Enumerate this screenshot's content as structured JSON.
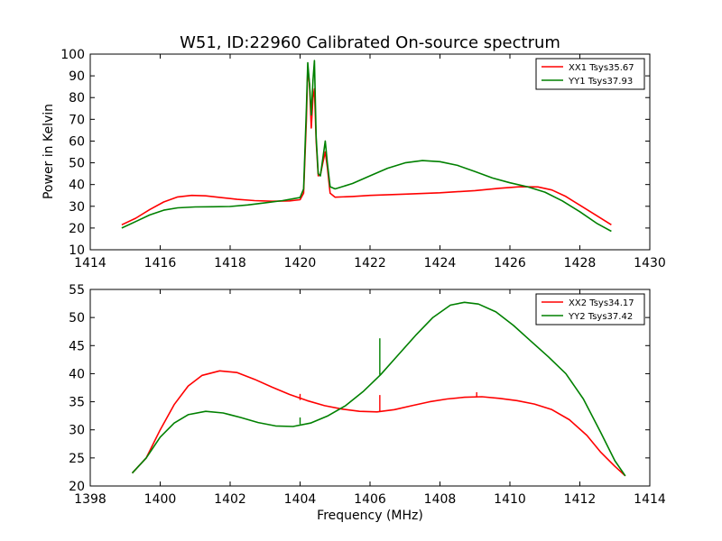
{
  "chart_data": [
    {
      "type": "line",
      "title": "W51, ID:22960 Calibrated On-source spectrum",
      "xlabel": "",
      "ylabel": "Power in Kelvin",
      "xlim": [
        1414,
        1430
      ],
      "ylim": [
        10,
        100
      ],
      "xticks": [
        1414,
        1416,
        1418,
        1420,
        1422,
        1424,
        1426,
        1428,
        1430
      ],
      "yticks": [
        10,
        20,
        30,
        40,
        50,
        60,
        70,
        80,
        90,
        100
      ],
      "grid": false,
      "legend_position": "top-right",
      "series": [
        {
          "name": "XX1 Tsys35.67",
          "color": "#ff0000",
          "points": [
            [
              1414.9,
              21.5
            ],
            [
              1415.3,
              24.5
            ],
            [
              1415.7,
              28.5
            ],
            [
              1416.1,
              32.0
            ],
            [
              1416.5,
              34.3
            ],
            [
              1416.9,
              35.0
            ],
            [
              1417.3,
              34.8
            ],
            [
              1417.7,
              34.1
            ],
            [
              1418.2,
              33.2
            ],
            [
              1418.7,
              32.6
            ],
            [
              1419.2,
              32.3
            ],
            [
              1419.7,
              32.5
            ],
            [
              1420.0,
              33.0
            ],
            [
              1420.1,
              36.0
            ],
            [
              1420.18,
              70.0
            ],
            [
              1420.22,
              94.0
            ],
            [
              1420.27,
              86.0
            ],
            [
              1420.32,
              66.0
            ],
            [
              1420.37,
              80.0
            ],
            [
              1420.41,
              84.0
            ],
            [
              1420.46,
              60.0
            ],
            [
              1420.52,
              44.0
            ],
            [
              1420.58,
              44.5
            ],
            [
              1420.65,
              50.0
            ],
            [
              1420.72,
              55.0
            ],
            [
              1420.78,
              48.0
            ],
            [
              1420.86,
              36.0
            ],
            [
              1421.0,
              34.2
            ],
            [
              1421.5,
              34.5
            ],
            [
              1422.0,
              35.0
            ],
            [
              1423.0,
              35.6
            ],
            [
              1424.0,
              36.2
            ],
            [
              1425.0,
              37.2
            ],
            [
              1425.7,
              38.3
            ],
            [
              1426.3,
              39.0
            ],
            [
              1426.8,
              38.9
            ],
            [
              1427.2,
              37.5
            ],
            [
              1427.6,
              34.5
            ],
            [
              1428.0,
              30.5
            ],
            [
              1428.4,
              26.5
            ],
            [
              1428.9,
              21.5
            ]
          ]
        },
        {
          "name": "YY1 Tsys37.93",
          "color": "#008000",
          "points": [
            [
              1414.9,
              20.0
            ],
            [
              1415.3,
              23.0
            ],
            [
              1415.7,
              26.0
            ],
            [
              1416.1,
              28.2
            ],
            [
              1416.5,
              29.3
            ],
            [
              1417.0,
              29.7
            ],
            [
              1417.5,
              29.8
            ],
            [
              1418.0,
              29.9
            ],
            [
              1418.5,
              30.6
            ],
            [
              1419.0,
              31.6
            ],
            [
              1419.5,
              32.6
            ],
            [
              1420.0,
              34.0
            ],
            [
              1420.1,
              38.0
            ],
            [
              1420.18,
              75.0
            ],
            [
              1420.22,
              96.0
            ],
            [
              1420.27,
              86.0
            ],
            [
              1420.32,
              72.0
            ],
            [
              1420.37,
              88.0
            ],
            [
              1420.41,
              97.0
            ],
            [
              1420.46,
              62.0
            ],
            [
              1420.52,
              45.0
            ],
            [
              1420.58,
              44.0
            ],
            [
              1420.65,
              52.0
            ],
            [
              1420.72,
              60.0
            ],
            [
              1420.78,
              50.0
            ],
            [
              1420.86,
              39.0
            ],
            [
              1421.0,
              38.0
            ],
            [
              1421.5,
              40.5
            ],
            [
              1422.0,
              44.0
            ],
            [
              1422.5,
              47.5
            ],
            [
              1423.0,
              50.0
            ],
            [
              1423.5,
              51.0
            ],
            [
              1424.0,
              50.5
            ],
            [
              1424.5,
              48.8
            ],
            [
              1425.0,
              46.0
            ],
            [
              1425.5,
              43.0
            ],
            [
              1426.0,
              40.8
            ],
            [
              1426.5,
              39.0
            ],
            [
              1427.0,
              36.5
            ],
            [
              1427.5,
              32.5
            ],
            [
              1428.0,
              27.5
            ],
            [
              1428.5,
              22.0
            ],
            [
              1428.9,
              18.5
            ]
          ]
        }
      ]
    },
    {
      "type": "line",
      "title": "",
      "xlabel": "Frequency (MHz)",
      "ylabel": "",
      "xlim": [
        1398,
        1414
      ],
      "ylim": [
        20,
        55
      ],
      "xticks": [
        1398,
        1400,
        1402,
        1404,
        1406,
        1408,
        1410,
        1412,
        1414
      ],
      "yticks": [
        20,
        25,
        30,
        35,
        40,
        45,
        50,
        55
      ],
      "grid": false,
      "legend_position": "top-right",
      "series": [
        {
          "name": "XX2 Tsys34.17",
          "color": "#ff0000",
          "points": [
            [
              1399.2,
              22.3
            ],
            [
              1399.6,
              25.0
            ],
            [
              1400.0,
              30.0
            ],
            [
              1400.4,
              34.5
            ],
            [
              1400.8,
              37.8
            ],
            [
              1401.2,
              39.7
            ],
            [
              1401.7,
              40.5
            ],
            [
              1402.2,
              40.2
            ],
            [
              1402.7,
              39.0
            ],
            [
              1403.2,
              37.6
            ],
            [
              1403.7,
              36.3
            ],
            [
              1404.2,
              35.2
            ],
            [
              1404.7,
              34.3
            ],
            [
              1405.2,
              33.7
            ],
            [
              1405.7,
              33.3
            ],
            [
              1406.2,
              33.2
            ],
            [
              1406.7,
              33.6
            ],
            [
              1407.2,
              34.3
            ],
            [
              1407.7,
              35.0
            ],
            [
              1408.2,
              35.5
            ],
            [
              1408.7,
              35.8
            ],
            [
              1409.2,
              35.9
            ],
            [
              1409.7,
              35.6
            ],
            [
              1410.2,
              35.2
            ],
            [
              1410.7,
              34.6
            ],
            [
              1411.2,
              33.6
            ],
            [
              1411.7,
              31.8
            ],
            [
              1412.2,
              29.0
            ],
            [
              1412.6,
              26.0
            ],
            [
              1413.0,
              23.5
            ],
            [
              1413.3,
              21.8
            ]
          ]
        },
        {
          "name": "YY2 Tsys37.42",
          "color": "#008000",
          "points": [
            [
              1399.2,
              22.3
            ],
            [
              1399.6,
              25.0
            ],
            [
              1400.0,
              28.7
            ],
            [
              1400.4,
              31.2
            ],
            [
              1400.8,
              32.7
            ],
            [
              1401.3,
              33.3
            ],
            [
              1401.8,
              33.0
            ],
            [
              1402.3,
              32.2
            ],
            [
              1402.8,
              31.3
            ],
            [
              1403.3,
              30.7
            ],
            [
              1403.8,
              30.6
            ],
            [
              1404.3,
              31.2
            ],
            [
              1404.8,
              32.5
            ],
            [
              1405.3,
              34.3
            ],
            [
              1405.8,
              36.8
            ],
            [
              1406.3,
              39.8
            ],
            [
              1406.8,
              43.3
            ],
            [
              1407.3,
              46.8
            ],
            [
              1407.8,
              50.0
            ],
            [
              1408.3,
              52.2
            ],
            [
              1408.7,
              52.7
            ],
            [
              1409.1,
              52.4
            ],
            [
              1409.6,
              51.0
            ],
            [
              1410.1,
              48.6
            ],
            [
              1410.6,
              45.8
            ],
            [
              1411.1,
              43.0
            ],
            [
              1411.6,
              40.0
            ],
            [
              1412.1,
              35.5
            ],
            [
              1412.6,
              29.5
            ],
            [
              1413.0,
              24.5
            ],
            [
              1413.3,
              21.8
            ]
          ]
        }
      ],
      "spikes": [
        {
          "series": "YY2 Tsys37.42",
          "x": 1406.28,
          "from": 39.8,
          "to": 46.3
        },
        {
          "series": "XX2 Tsys34.17",
          "x": 1406.28,
          "from": 33.2,
          "to": 36.2
        },
        {
          "series": "XX2 Tsys34.17",
          "x": 1404.0,
          "from": 35.3,
          "to": 36.4
        },
        {
          "series": "YY2 Tsys37.42",
          "x": 1404.0,
          "from": 31.0,
          "to": 32.2
        },
        {
          "series": "XX2 Tsys34.17",
          "x": 1409.05,
          "from": 35.9,
          "to": 36.7
        }
      ]
    }
  ]
}
